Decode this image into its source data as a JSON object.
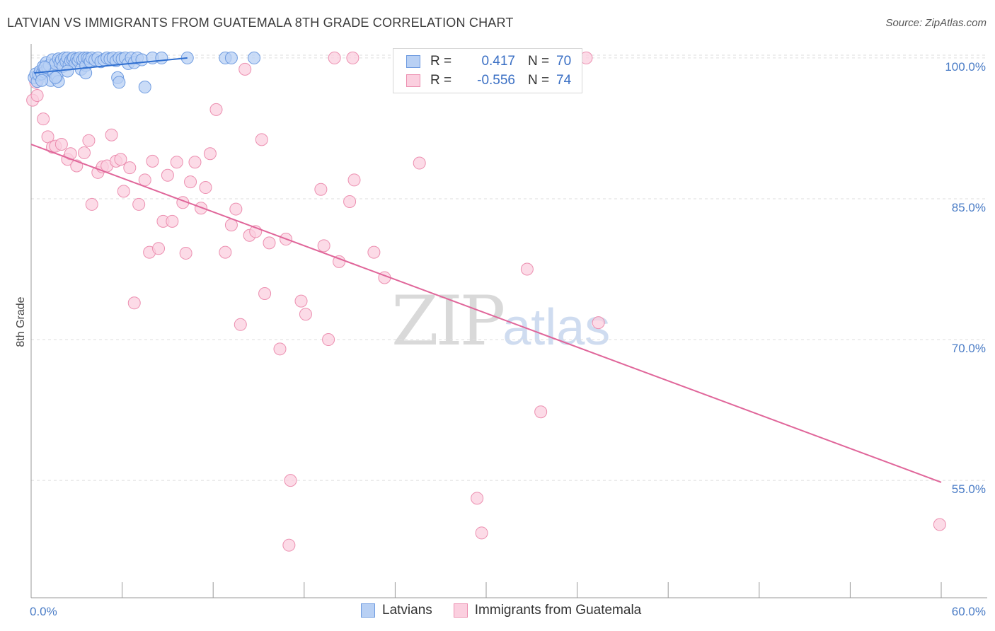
{
  "title": "LATVIAN VS IMMIGRANTS FROM GUATEMALA 8TH GRADE CORRELATION CHART",
  "source": "Source: ZipAtlas.com",
  "watermark": {
    "zip": "ZIP",
    "atlas": "atlas"
  },
  "legend": {
    "rows": [
      {
        "r_label": "R =",
        "r_value": "0.417",
        "n_label": "N =",
        "n_value": "70",
        "color": "#b8d0f4",
        "border": "#6e9be0"
      },
      {
        "r_label": "R =",
        "r_value": "-0.556",
        "n_label": "N =",
        "n_value": "74",
        "color": "#fbcfdf",
        "border": "#ec8fb0"
      }
    ]
  },
  "bottom_legend": [
    {
      "label": "Latvians",
      "color": "#b8d0f4",
      "border": "#6e9be0"
    },
    {
      "label": "Immigrants from Guatemala",
      "color": "#fbcfdf",
      "border": "#ec8fb0"
    }
  ],
  "chart_data": {
    "type": "scatter",
    "title": "LATVIAN VS IMMIGRANTS FROM GUATEMALA 8TH GRADE CORRELATION CHART",
    "xlabel": "",
    "ylabel": "8th Grade",
    "xlim": [
      0,
      60
    ],
    "ylim": [
      42.5,
      101.5
    ],
    "x_tick_labels": [
      {
        "x": 0,
        "label": "0.0%"
      },
      {
        "x": 60,
        "label": "60.0%"
      }
    ],
    "x_minor_ticks": [
      0,
      6,
      12,
      18,
      24,
      30,
      36,
      42,
      48,
      54,
      60
    ],
    "y_ticks": [
      {
        "y": 100,
        "label": "100.0%"
      },
      {
        "y": 85,
        "label": "85.0%"
      },
      {
        "y": 70,
        "label": "70.0%"
      },
      {
        "y": 55,
        "label": "55.0%"
      }
    ],
    "grid": true,
    "series": [
      {
        "name": "Latvians",
        "color": "#6e9be0",
        "fill": "#b8d0f4",
        "trend": {
          "x0": 0.2,
          "y0": 98.4,
          "x1": 10.3,
          "y1": 100.0,
          "color": "#2f6fd0"
        },
        "points": [
          [
            0.2,
            97.9
          ],
          [
            0.3,
            98.3
          ],
          [
            0.4,
            97.5
          ],
          [
            0.5,
            98.2
          ],
          [
            0.6,
            98.6
          ],
          [
            0.7,
            98.3
          ],
          [
            0.8,
            99.1
          ],
          [
            0.9,
            98.5
          ],
          [
            1.0,
            99.5
          ],
          [
            1.1,
            98.9
          ],
          [
            1.2,
            99.2
          ],
          [
            1.3,
            97.6
          ],
          [
            1.4,
            99.8
          ],
          [
            1.5,
            98.4
          ],
          [
            1.6,
            99.4
          ],
          [
            1.7,
            98.0
          ],
          [
            1.8,
            99.9
          ],
          [
            1.9,
            99.5
          ],
          [
            2.0,
            99.8
          ],
          [
            2.1,
            99.1
          ],
          [
            2.2,
            100.0
          ],
          [
            2.3,
            99.6
          ],
          [
            2.4,
            100.0
          ],
          [
            2.5,
            99.3
          ],
          [
            2.6,
            99.7
          ],
          [
            2.7,
            99.9
          ],
          [
            2.8,
            100.0
          ],
          [
            2.9,
            99.4
          ],
          [
            3.0,
            99.9
          ],
          [
            3.1,
            99.7
          ],
          [
            3.2,
            100.0
          ],
          [
            3.3,
            98.8
          ],
          [
            3.4,
            99.8
          ],
          [
            3.5,
            100.0
          ],
          [
            3.6,
            99.2
          ],
          [
            3.7,
            100.0
          ],
          [
            3.8,
            99.9
          ],
          [
            3.9,
            99.6
          ],
          [
            4.0,
            100.0
          ],
          [
            4.2,
            99.8
          ],
          [
            4.4,
            100.0
          ],
          [
            4.6,
            99.6
          ],
          [
            4.8,
            99.8
          ],
          [
            5.0,
            100.0
          ],
          [
            5.2,
            99.9
          ],
          [
            5.4,
            100.0
          ],
          [
            5.6,
            99.7
          ],
          [
            5.8,
            100.0
          ],
          [
            6.0,
            99.9
          ],
          [
            6.2,
            100.0
          ],
          [
            6.4,
            99.4
          ],
          [
            6.6,
            100.0
          ],
          [
            6.8,
            99.5
          ],
          [
            7.0,
            100.0
          ],
          [
            7.3,
            99.8
          ],
          [
            8.0,
            100.0
          ],
          [
            8.6,
            100.0
          ],
          [
            10.3,
            100.0
          ],
          [
            12.8,
            100.0
          ],
          [
            13.2,
            100.0
          ],
          [
            14.7,
            100.0
          ],
          [
            5.7,
            97.9
          ],
          [
            5.8,
            97.4
          ],
          [
            7.5,
            96.9
          ],
          [
            0.7,
            97.6
          ],
          [
            1.8,
            97.5
          ],
          [
            2.4,
            98.6
          ],
          [
            3.6,
            98.4
          ],
          [
            0.9,
            99.0
          ],
          [
            1.6,
            97.9
          ]
        ]
      },
      {
        "name": "Immigrants from Guatemala",
        "color": "#ec8fb0",
        "fill": "#fbcfdf",
        "trend": {
          "x0": 0,
          "y0": 90.8,
          "x1": 60,
          "y1": 54.8,
          "color": "#e0669a"
        },
        "points": [
          [
            0.1,
            95.5
          ],
          [
            0.3,
            97.4
          ],
          [
            0.4,
            96.0
          ],
          [
            0.8,
            93.5
          ],
          [
            1.1,
            91.6
          ],
          [
            1.4,
            90.5
          ],
          [
            1.6,
            90.6
          ],
          [
            2.0,
            90.8
          ],
          [
            2.4,
            89.2
          ],
          [
            2.6,
            89.8
          ],
          [
            3.0,
            88.5
          ],
          [
            3.5,
            89.9
          ],
          [
            3.8,
            91.2
          ],
          [
            4.0,
            84.4
          ],
          [
            4.4,
            87.8
          ],
          [
            4.7,
            88.4
          ],
          [
            5.0,
            88.5
          ],
          [
            5.3,
            91.8
          ],
          [
            5.6,
            89.0
          ],
          [
            5.9,
            89.2
          ],
          [
            6.1,
            85.8
          ],
          [
            6.5,
            88.3
          ],
          [
            6.8,
            73.9
          ],
          [
            7.1,
            84.4
          ],
          [
            7.5,
            87.0
          ],
          [
            7.8,
            79.3
          ],
          [
            8.0,
            89.0
          ],
          [
            8.4,
            79.7
          ],
          [
            8.7,
            82.6
          ],
          [
            9.0,
            87.5
          ],
          [
            9.3,
            82.6
          ],
          [
            9.6,
            88.9
          ],
          [
            10.0,
            84.6
          ],
          [
            10.2,
            79.2
          ],
          [
            10.5,
            86.8
          ],
          [
            10.8,
            88.9
          ],
          [
            11.2,
            84.0
          ],
          [
            11.5,
            86.2
          ],
          [
            11.8,
            89.8
          ],
          [
            12.2,
            94.5
          ],
          [
            12.8,
            79.3
          ],
          [
            13.2,
            82.2
          ],
          [
            13.5,
            83.9
          ],
          [
            13.8,
            71.6
          ],
          [
            14.1,
            98.8
          ],
          [
            14.4,
            81.1
          ],
          [
            14.8,
            81.5
          ],
          [
            15.2,
            91.3
          ],
          [
            15.4,
            74.9
          ],
          [
            15.7,
            80.3
          ],
          [
            16.4,
            69.0
          ],
          [
            16.8,
            80.7
          ],
          [
            17.0,
            48.1
          ],
          [
            17.1,
            55.0
          ],
          [
            17.8,
            74.1
          ],
          [
            18.1,
            72.7
          ],
          [
            19.1,
            86.0
          ],
          [
            19.3,
            80.0
          ],
          [
            19.6,
            70.0
          ],
          [
            20.0,
            100.0
          ],
          [
            20.3,
            78.3
          ],
          [
            21.2,
            100.0
          ],
          [
            21.3,
            87.0
          ],
          [
            21.0,
            84.7
          ],
          [
            22.6,
            79.3
          ],
          [
            23.3,
            76.6
          ],
          [
            25.6,
            88.8
          ],
          [
            29.4,
            53.1
          ],
          [
            29.7,
            49.4
          ],
          [
            32.7,
            77.5
          ],
          [
            33.6,
            62.3
          ],
          [
            36.6,
            100.0
          ],
          [
            37.4,
            71.8
          ],
          [
            59.9,
            50.3
          ]
        ]
      }
    ]
  }
}
